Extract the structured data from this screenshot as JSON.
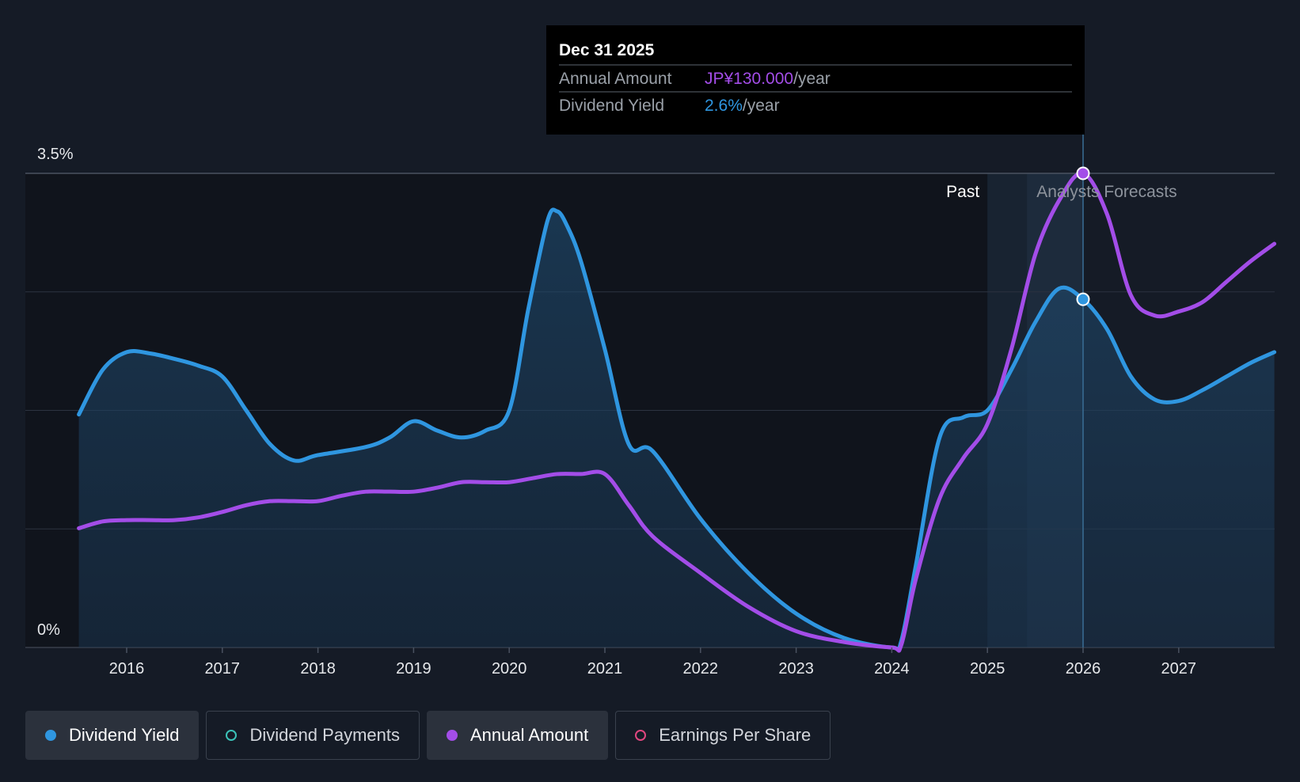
{
  "chart_data": {
    "type": "line",
    "y_ticks": [
      "3.5%",
      "0%"
    ],
    "ylim": [
      0,
      3.5
    ],
    "x_ticks": [
      "2016",
      "2017",
      "2018",
      "2019",
      "2020",
      "2021",
      "2022",
      "2023",
      "2024",
      "2025",
      "2026",
      "2027"
    ],
    "xlim": [
      2015.5,
      2028.0
    ],
    "region_labels": {
      "past": "Past",
      "forecast": "Analysts Forecasts"
    },
    "forecast_start": 2025.0,
    "series": [
      {
        "name": "Dividend Yield",
        "color": "#2f96e0",
        "unit": "%",
        "filled": true,
        "x": [
          2015.5,
          2015.75,
          2016.0,
          2016.25,
          2016.5,
          2016.75,
          2017.0,
          2017.25,
          2017.5,
          2017.75,
          2018.0,
          2018.5,
          2018.75,
          2019.0,
          2019.25,
          2019.5,
          2019.75,
          2020.0,
          2020.2,
          2020.4,
          2020.5,
          2020.6,
          2020.75,
          2021.0,
          2021.25,
          2021.5,
          2022.0,
          2022.5,
          2023.0,
          2023.5,
          2024.0,
          2024.1,
          2024.25,
          2024.5,
          2024.75,
          2025.0,
          2025.25,
          2025.5,
          2025.75,
          2026.0,
          2026.25,
          2026.5,
          2026.75,
          2027.0,
          2027.25,
          2027.5,
          2027.75,
          2028.0
        ],
        "y": [
          1.72,
          2.05,
          2.18,
          2.17,
          2.13,
          2.08,
          2.0,
          1.75,
          1.5,
          1.38,
          1.42,
          1.48,
          1.55,
          1.67,
          1.6,
          1.55,
          1.6,
          1.75,
          2.5,
          3.15,
          3.22,
          3.12,
          2.85,
          2.2,
          1.5,
          1.45,
          0.95,
          0.55,
          0.25,
          0.07,
          0.0,
          0.05,
          0.6,
          1.55,
          1.7,
          1.75,
          2.05,
          2.4,
          2.65,
          2.57,
          2.35,
          2.0,
          1.83,
          1.82,
          1.9,
          2.0,
          2.1,
          2.18
        ]
      },
      {
        "name": "Annual Amount",
        "color": "#a34de8",
        "unit": "JP¥",
        "filled": false,
        "x": [
          2015.5,
          2015.75,
          2016.0,
          2016.25,
          2016.5,
          2016.75,
          2017.0,
          2017.25,
          2017.5,
          2017.75,
          2018.0,
          2018.25,
          2018.5,
          2018.75,
          2019.0,
          2019.25,
          2019.5,
          2019.75,
          2020.0,
          2020.25,
          2020.5,
          2020.75,
          2021.0,
          2021.25,
          2021.5,
          2022.0,
          2022.5,
          2023.0,
          2023.5,
          2024.0,
          2024.1,
          2024.25,
          2024.5,
          2024.75,
          2025.0,
          2025.25,
          2025.5,
          2025.75,
          2026.0,
          2026.25,
          2026.5,
          2026.75,
          2027.0,
          2027.25,
          2027.5,
          2027.75,
          2028.0
        ],
        "y": [
          0.88,
          0.93,
          0.94,
          0.94,
          0.94,
          0.96,
          1.0,
          1.05,
          1.08,
          1.08,
          1.08,
          1.12,
          1.15,
          1.15,
          1.15,
          1.18,
          1.22,
          1.22,
          1.22,
          1.25,
          1.28,
          1.28,
          1.28,
          1.05,
          0.82,
          0.55,
          0.3,
          0.12,
          0.04,
          0.0,
          0.02,
          0.5,
          1.1,
          1.4,
          1.65,
          2.2,
          2.9,
          3.3,
          3.5,
          3.2,
          2.6,
          2.45,
          2.48,
          2.55,
          2.7,
          2.85,
          2.98
        ]
      }
    ],
    "tooltip": {
      "date": "Dec 31 2025",
      "x": 2026.0,
      "rows": [
        {
          "label": "Annual Amount",
          "value": "JP¥130.000",
          "suffix": "/year",
          "color": "#a34de8",
          "y": 3.5
        },
        {
          "label": "Dividend Yield",
          "value": "2.6%",
          "suffix": "/year",
          "color": "#2f96e0",
          "y": 2.57
        }
      ]
    }
  },
  "legend": [
    {
      "label": "Dividend Yield",
      "color": "#2f96e0",
      "active": true,
      "hollow": false
    },
    {
      "label": "Dividend Payments",
      "color": "#3bc2b8",
      "active": false,
      "hollow": true
    },
    {
      "label": "Annual Amount",
      "color": "#a34de8",
      "active": true,
      "hollow": false
    },
    {
      "label": "Earnings Per Share",
      "color": "#e0467f",
      "active": false,
      "hollow": true
    }
  ]
}
